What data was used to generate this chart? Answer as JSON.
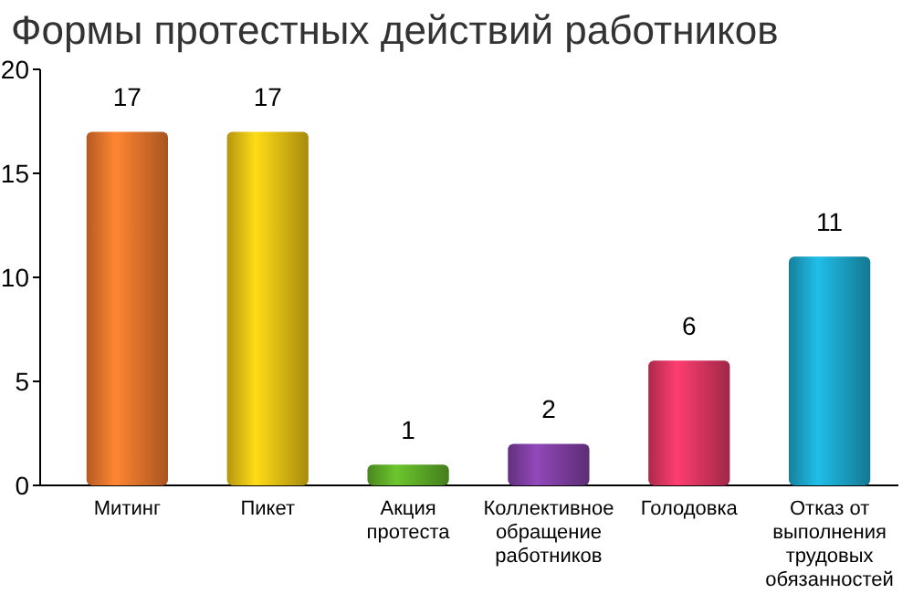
{
  "chart_data": {
    "type": "bar",
    "title": "Формы протестных действий работников",
    "categories": [
      "Митинг",
      "Пикет",
      "Акция протеста",
      "Коллективное обращение работников",
      "Голодовка",
      "Отказ от выполнения трудовых обязанностей"
    ],
    "values": [
      17,
      17,
      1,
      2,
      6,
      11
    ],
    "colors": [
      "#e0702a",
      "#e0b812",
      "#5aa626",
      "#7a3c9c",
      "#d4345e",
      "#1b9fc2"
    ],
    "ylim": [
      0,
      20
    ],
    "yticks": [
      0,
      5,
      10,
      15,
      20
    ],
    "grid": false,
    "data_labels": true
  }
}
